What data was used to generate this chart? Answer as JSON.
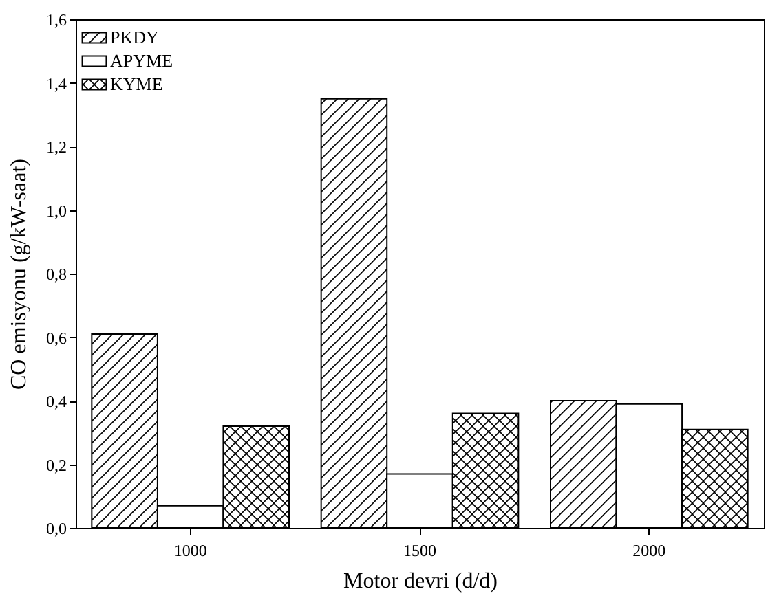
{
  "chart_data": {
    "type": "bar",
    "xlabel": "Motor devri (d/d)",
    "ylabel": "CO emisyonu (g/kW-saat)",
    "categories": [
      "1000",
      "1500",
      "2000"
    ],
    "series": [
      {
        "name": "PKDY",
        "color": "#000000",
        "values": [
          0.61,
          1.35,
          0.4
        ]
      },
      {
        "name": "APYME",
        "color": "#000000",
        "values": [
          0.07,
          0.17,
          0.39
        ]
      },
      {
        "name": "KYME",
        "color": "#000000",
        "values": [
          0.32,
          0.36,
          0.31
        ]
      }
    ],
    "ylim": [
      0,
      1.6
    ],
    "yticks": [
      {
        "value": 0,
        "label": "0,0"
      },
      {
        "value": 0.2,
        "label": "0,2"
      },
      {
        "value": 0.4,
        "label": "0,4"
      },
      {
        "value": 0.6,
        "label": "0,6"
      },
      {
        "value": 0.8,
        "label": "0,8"
      },
      {
        "value": 1.0,
        "label": "1,0"
      },
      {
        "value": 1.2,
        "label": "1,2"
      },
      {
        "value": 1.4,
        "label": "1,4"
      },
      {
        "value": 1.6,
        "label": "1,6"
      }
    ],
    "legend": "top left",
    "grid": false
  }
}
